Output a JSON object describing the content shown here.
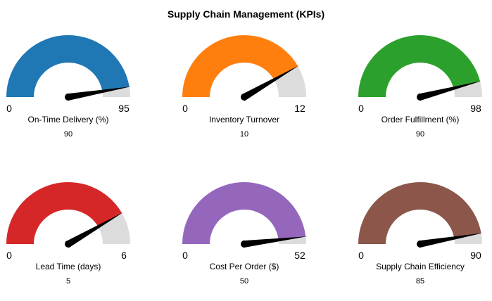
{
  "title": "Supply Chain Management (KPIs)",
  "chart_data": [
    {
      "type": "gauge",
      "label": "On-Time Delivery (%)",
      "value": 90,
      "min": 0,
      "max": 95,
      "color": "#1f77b4"
    },
    {
      "type": "gauge",
      "label": "Inventory Turnover",
      "value": 10,
      "min": 0,
      "max": 12,
      "color": "#ff7f0e"
    },
    {
      "type": "gauge",
      "label": "Order Fulfillment (%)",
      "value": 90,
      "min": 0,
      "max": 98,
      "color": "#2ca02c"
    },
    {
      "type": "gauge",
      "label": "Lead Time (days)",
      "value": 5,
      "min": 0,
      "max": 6,
      "color": "#d62728"
    },
    {
      "type": "gauge",
      "label": "Cost Per Order ($)",
      "value": 50,
      "min": 0,
      "max": 52,
      "color": "#9467bd"
    },
    {
      "type": "gauge",
      "label": "Supply Chain Efficiency",
      "value": 85,
      "min": 0,
      "max": 90,
      "color": "#8c564b"
    }
  ],
  "track_color": "#dcdcdc",
  "needle_color": "#000000"
}
